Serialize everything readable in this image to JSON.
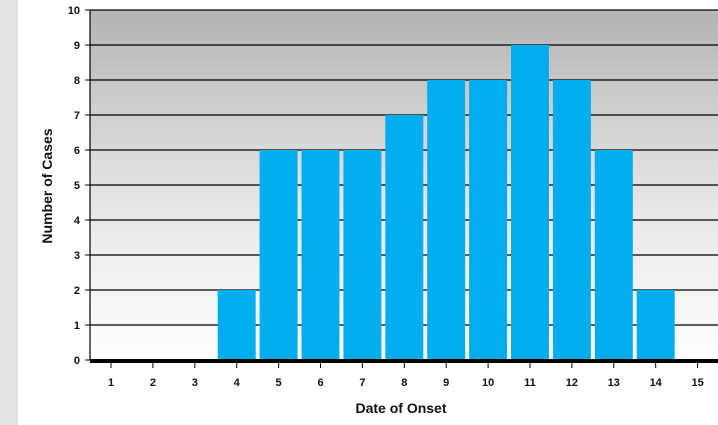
{
  "chart_data": {
    "type": "bar",
    "title": "",
    "xlabel": "Date of Onset",
    "ylabel": "Number of Cases",
    "categories": [
      "1",
      "2",
      "3",
      "4",
      "5",
      "6",
      "7",
      "8",
      "9",
      "10",
      "11",
      "12",
      "13",
      "14",
      "15"
    ],
    "values": [
      0,
      0,
      0,
      2,
      6,
      6,
      6,
      7,
      8,
      8,
      9,
      8,
      6,
      2,
      0
    ],
    "ylim": [
      0,
      10
    ],
    "yticks": [
      "0",
      "1",
      "2",
      "3",
      "4",
      "5",
      "6",
      "7",
      "8",
      "9",
      "10"
    ],
    "grid": true,
    "bar_color": "#00aeef",
    "plot_background": "gradient gray to white"
  }
}
